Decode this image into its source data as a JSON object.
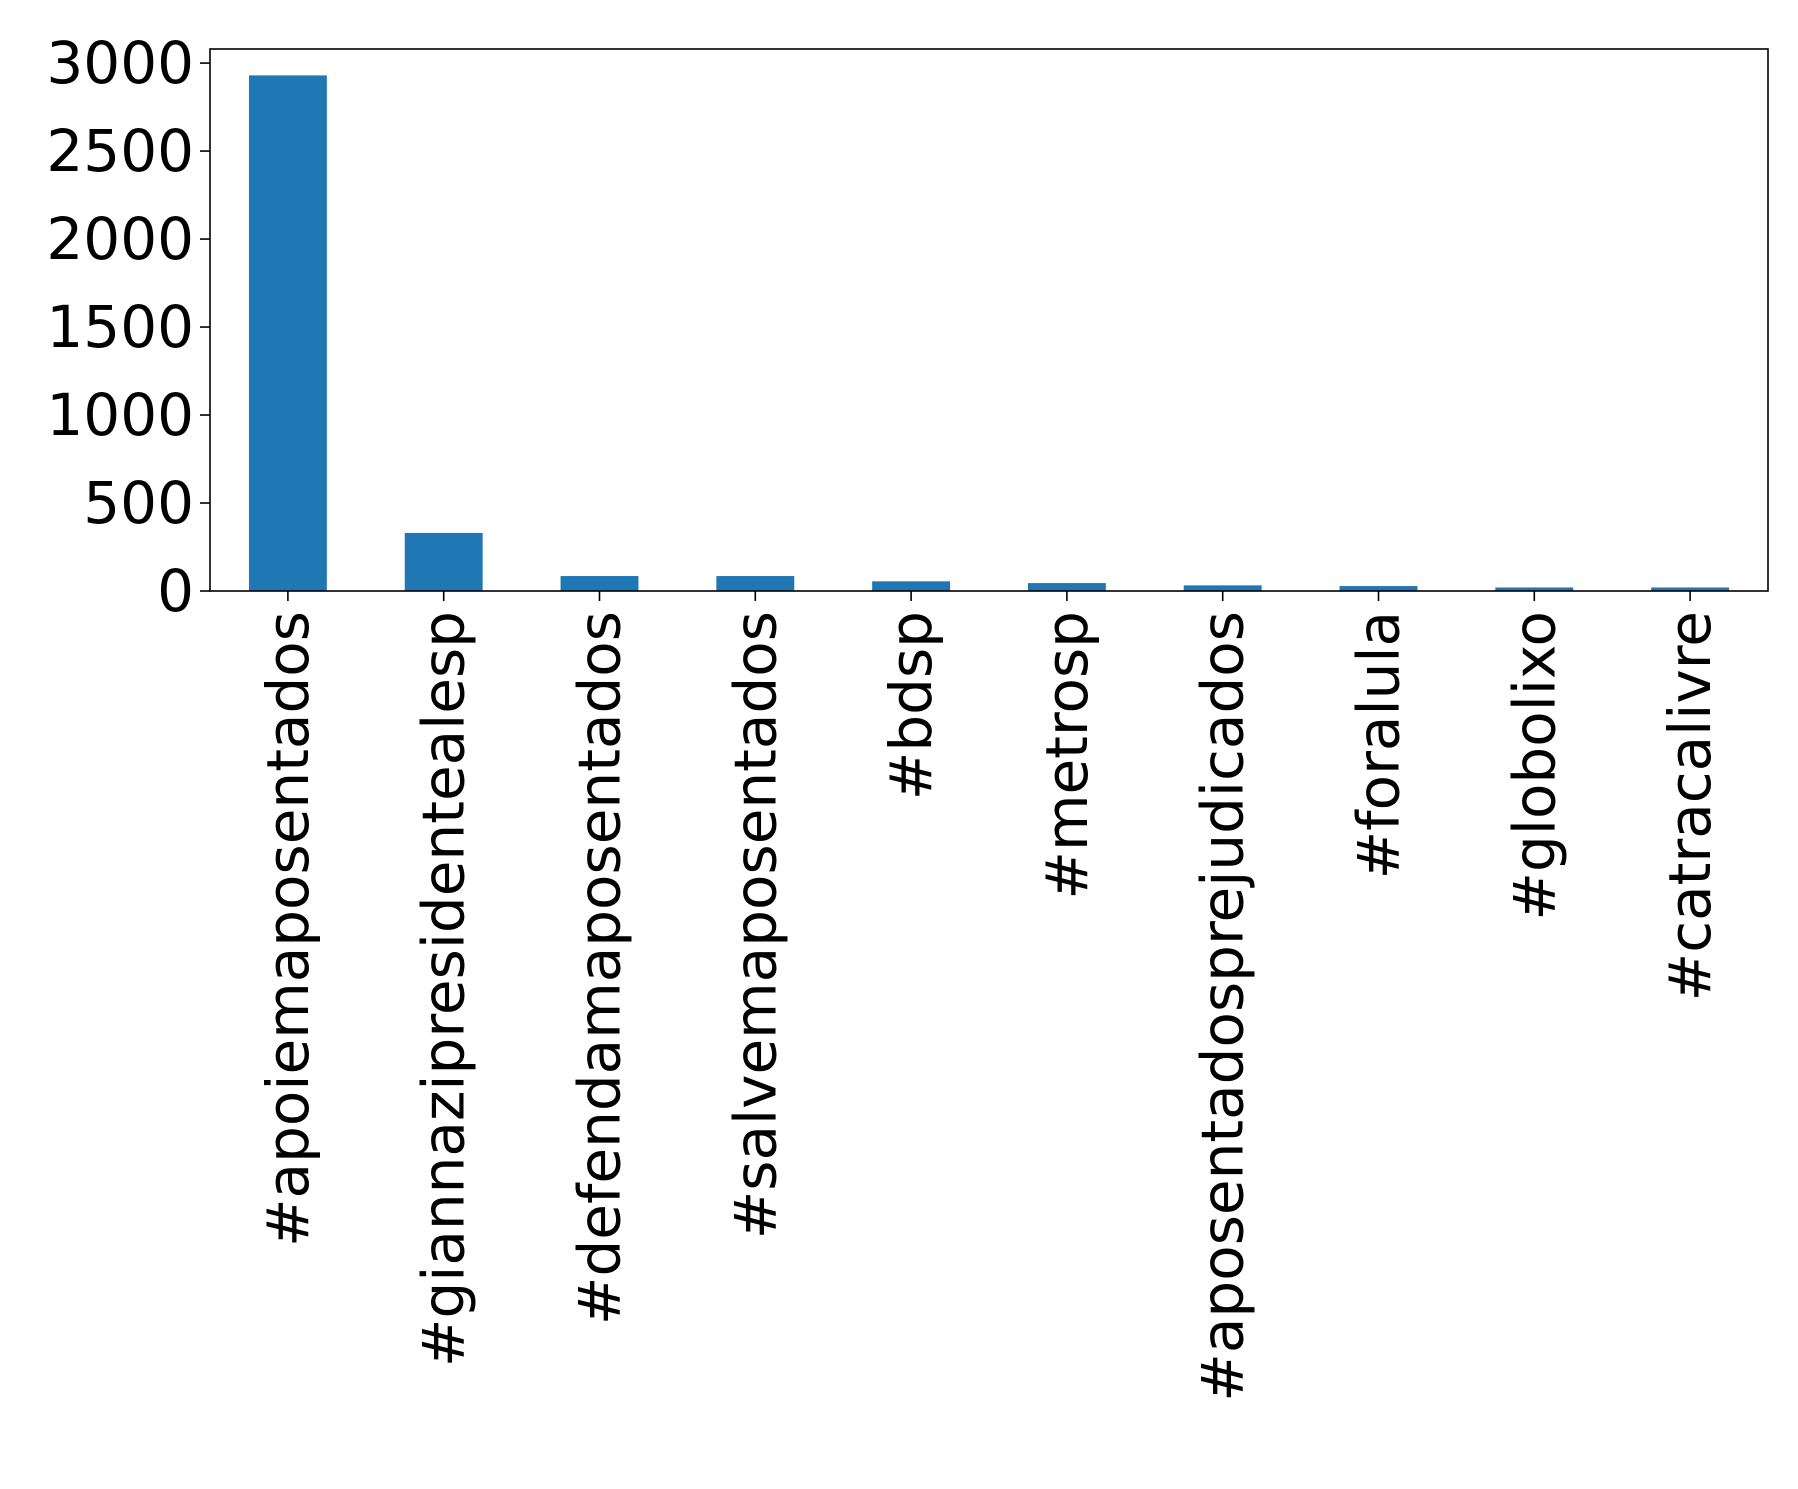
{
  "chart_data": {
    "type": "bar",
    "title": "",
    "xlabel": "",
    "ylabel": "",
    "categories": [
      "#apoiemaposentados",
      "#giannazipresidentealesp",
      "#defendamaposentados",
      "#salvemaposentados",
      "#bdsp",
      "#metrosp",
      "#aposentadosprejudicados",
      "#foralula",
      "#globolixo",
      "#catracalivre"
    ],
    "values": [
      2930,
      330,
      85,
      85,
      55,
      45,
      32,
      28,
      20,
      20
    ],
    "ylim": [
      0,
      3080
    ],
    "yticks": [
      0,
      500,
      1000,
      1500,
      2000,
      2500,
      3000
    ],
    "ytick_labels": [
      "0",
      "500",
      "1000",
      "1500",
      "2000",
      "2500",
      "3000"
    ],
    "bar_color": "#1f77b4",
    "grid": false,
    "legend": "none"
  }
}
